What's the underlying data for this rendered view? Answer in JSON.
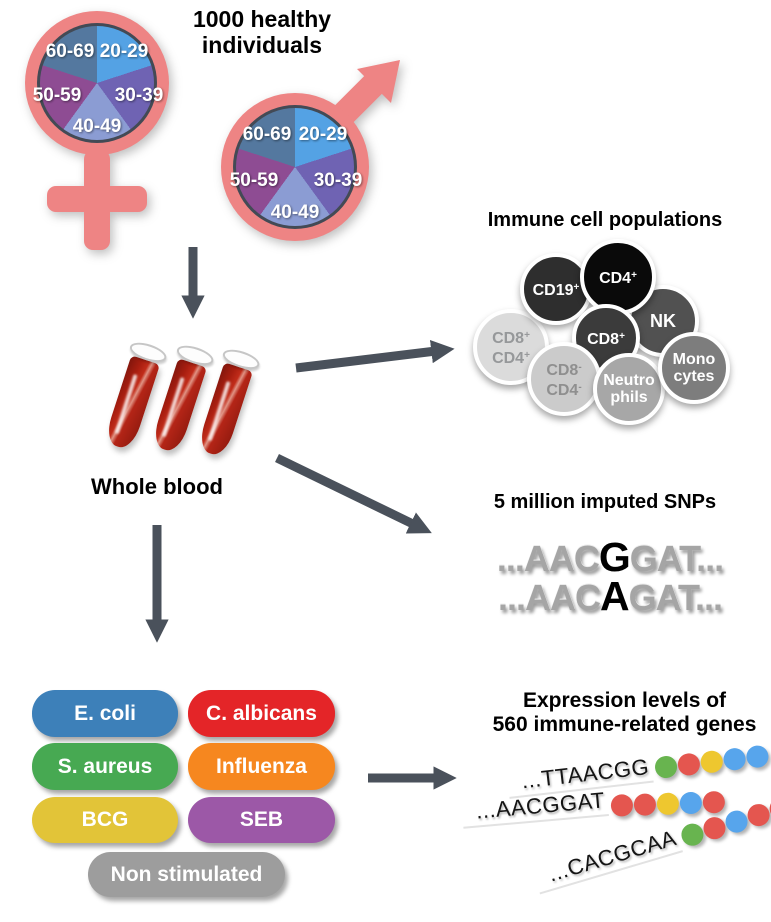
{
  "colors": {
    "salmon": "#ee8484",
    "ring": "#434a55",
    "arrow": "#4a515b",
    "tube-red": "#b2261a"
  },
  "title": "1000 healthy\nindividuals",
  "pie": {
    "labels": [
      "20-29",
      "30-39",
      "40-49",
      "50-59",
      "60-69"
    ],
    "colors": [
      "#54a2e4",
      "#6f63b3",
      "#8b9cd3",
      "#8e4c93",
      "#54789f"
    ]
  },
  "whole_blood": {
    "label": "Whole blood"
  },
  "immune": {
    "heading": "Immune cell populations",
    "cells": [
      {
        "name": "CD8+CD4+",
        "l1": "CD8",
        "s1": "+",
        "l2": "CD4",
        "s2": "+",
        "bg": "#dbdbdb",
        "fg": "#96989a"
      },
      {
        "name": "CD19+",
        "l1": "CD19",
        "s1": "+",
        "bg": "#2e2e2e",
        "fg": "#ffffff"
      },
      {
        "name": "NK",
        "l1": "NK",
        "bg": "#515151",
        "fg": "#ffffff"
      },
      {
        "name": "CD4+",
        "l1": "CD4",
        "s1": "+",
        "bg": "#0a0a0a",
        "fg": "#ffffff"
      },
      {
        "name": "CD8+",
        "l1": "CD8",
        "s1": "+",
        "bg": "#3b3b3b",
        "fg": "#ffffff"
      },
      {
        "name": "CD8-CD4-",
        "l1": "CD8",
        "s1": "-",
        "l2": "CD4",
        "s2": "-",
        "bg": "#cbcbcb",
        "fg": "#8f8f8f"
      },
      {
        "name": "Neutrophils",
        "l1": "Neutro",
        "l2": "phils",
        "bg": "#a7a7a7",
        "fg": "#ffffff"
      },
      {
        "name": "Monocytes",
        "l1": "Mono",
        "l2": "cytes",
        "bg": "#7d7d7d",
        "fg": "#ffffff"
      }
    ]
  },
  "snps": {
    "heading": "5 million imputed SNPs",
    "rows": [
      {
        "pre": "...AAC",
        "variant": "G",
        "post": "GAT..."
      },
      {
        "pre": "...AAC",
        "variant": "A",
        "post": "GAT..."
      }
    ]
  },
  "stimulations": [
    {
      "label": "E. coli",
      "color": "#3d80b9"
    },
    {
      "label": "C. albicans",
      "color": "#e42528"
    },
    {
      "label": "S. aureus",
      "color": "#47a952"
    },
    {
      "label": "Influenza",
      "color": "#f6871f"
    },
    {
      "label": "BCG",
      "color": "#e2c438"
    },
    {
      "label": "SEB",
      "color": "#9c58a7"
    },
    {
      "label": "Non stimulated",
      "color": "#9d9d9d"
    }
  ],
  "expression": {
    "heading": "Expression levels of\n560 immune-related genes",
    "rows": [
      {
        "seq": "...TTAACGG",
        "dots": [
          "green",
          "red",
          "yellow",
          "blue",
          "blue"
        ]
      },
      {
        "seq": "...AACGGAT",
        "dots": [
          "red",
          "red",
          "yellow",
          "blue",
          "red"
        ]
      },
      {
        "seq": "...CACGCAA",
        "dots": [
          "green",
          "red",
          "blue",
          "red",
          "red"
        ]
      }
    ],
    "dot_colors": {
      "green": "#68b44f",
      "red": "#e4564f",
      "yellow": "#eec72f",
      "blue": "#57a5ec"
    }
  }
}
